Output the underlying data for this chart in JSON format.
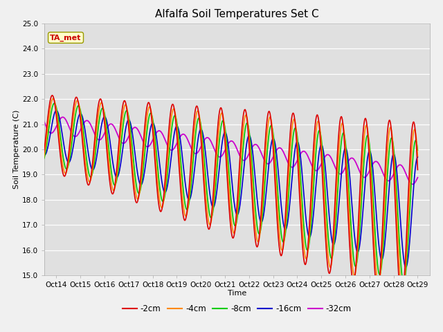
{
  "title": "Alfalfa Soil Temperatures Set C",
  "xlabel": "Time",
  "ylabel": "Soil Temperature (C)",
  "ylim": [
    15.0,
    25.0
  ],
  "yticks": [
    15.0,
    16.0,
    17.0,
    18.0,
    19.0,
    20.0,
    21.0,
    22.0,
    23.0,
    24.0,
    25.0
  ],
  "x_labels": [
    "Oct 14",
    "Oct 15",
    "Oct 16",
    "Oct 17",
    "Oct 18",
    "Oct 19",
    "Oct 20",
    "Oct 21",
    "Oct 22",
    "Oct 23",
    "Oct 24",
    "Oct 25",
    "Oct 26",
    "Oct 27",
    "Oct 28",
    "Oct 29"
  ],
  "colors": {
    "-2cm": "#dd0000",
    "-4cm": "#ff8800",
    "-8cm": "#00cc00",
    "-16cm": "#0000cc",
    "-32cm": "#cc00cc"
  },
  "legend_labels": [
    "-2cm",
    "-4cm",
    "-8cm",
    "-16cm",
    "-32cm"
  ],
  "annotation": "TA_met",
  "fig_facecolor": "#f0f0f0",
  "ax_facecolor": "#e0e0e0",
  "title_fontsize": 11,
  "axis_fontsize": 8,
  "tick_fontsize": 7.5
}
